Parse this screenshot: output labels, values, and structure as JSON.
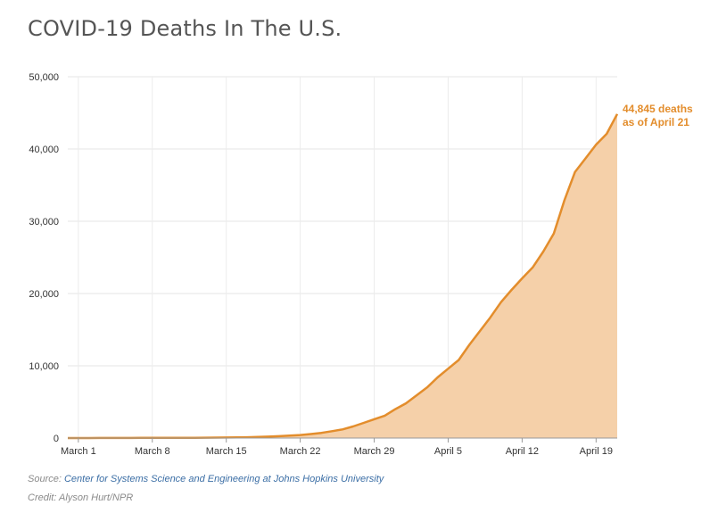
{
  "chart_data": {
    "type": "area",
    "title": "COVID-19 Deaths In The U.S.",
    "xlabel": "",
    "ylabel": "",
    "ylim": [
      0,
      50000
    ],
    "yticks": [
      0,
      10000,
      20000,
      30000,
      40000,
      50000
    ],
    "ytick_labels": [
      "0",
      "10,000",
      "20,000",
      "30,000",
      "40,000",
      "50,000"
    ],
    "xticks": [
      {
        "day": 1,
        "label": "March 1"
      },
      {
        "day": 8,
        "label": "March 8"
      },
      {
        "day": 15,
        "label": "March 15"
      },
      {
        "day": 22,
        "label": "March 22"
      },
      {
        "day": 29,
        "label": "March 29"
      },
      {
        "day": 36,
        "label": "April 5"
      },
      {
        "day": 43,
        "label": "April 12"
      },
      {
        "day": 50,
        "label": "April 19"
      }
    ],
    "x_range": [
      0,
      52
    ],
    "grid": true,
    "line_color": "#e38d2c",
    "fill_color": "#f5d0a9",
    "series": [
      {
        "name": "",
        "x": [
          0,
          1,
          2,
          3,
          4,
          5,
          6,
          7,
          8,
          9,
          10,
          11,
          12,
          13,
          14,
          15,
          16,
          17,
          18,
          19,
          20,
          21,
          22,
          23,
          24,
          25,
          26,
          27,
          28,
          29,
          30,
          31,
          32,
          33,
          34,
          35,
          36,
          37,
          38,
          39,
          40,
          41,
          42,
          43,
          44,
          45,
          46,
          47,
          48,
          49,
          50,
          51,
          52
        ],
        "values": [
          1,
          1,
          6,
          9,
          11,
          12,
          15,
          19,
          22,
          26,
          30,
          38,
          41,
          48,
          57,
          68,
          86,
          108,
          150,
          200,
          255,
          340,
          420,
          560,
          720,
          950,
          1200,
          1600,
          2100,
          2600,
          3100,
          4000,
          4800,
          5900,
          7000,
          8400,
          9600,
          10800,
          12900,
          14800,
          16700,
          18800,
          20500,
          22100,
          23600,
          25800,
          28300,
          32900,
          36800,
          38700,
          40600,
          42100,
          44845
        ]
      }
    ],
    "annotation": {
      "line1": "44,845 deaths",
      "line2": "as of April 21"
    }
  },
  "footer": {
    "source_label": "Source: ",
    "source_link": "Center for Systems Science and Engineering at Johns Hopkins University",
    "credit": "Credit: Alyson Hurt/NPR"
  }
}
